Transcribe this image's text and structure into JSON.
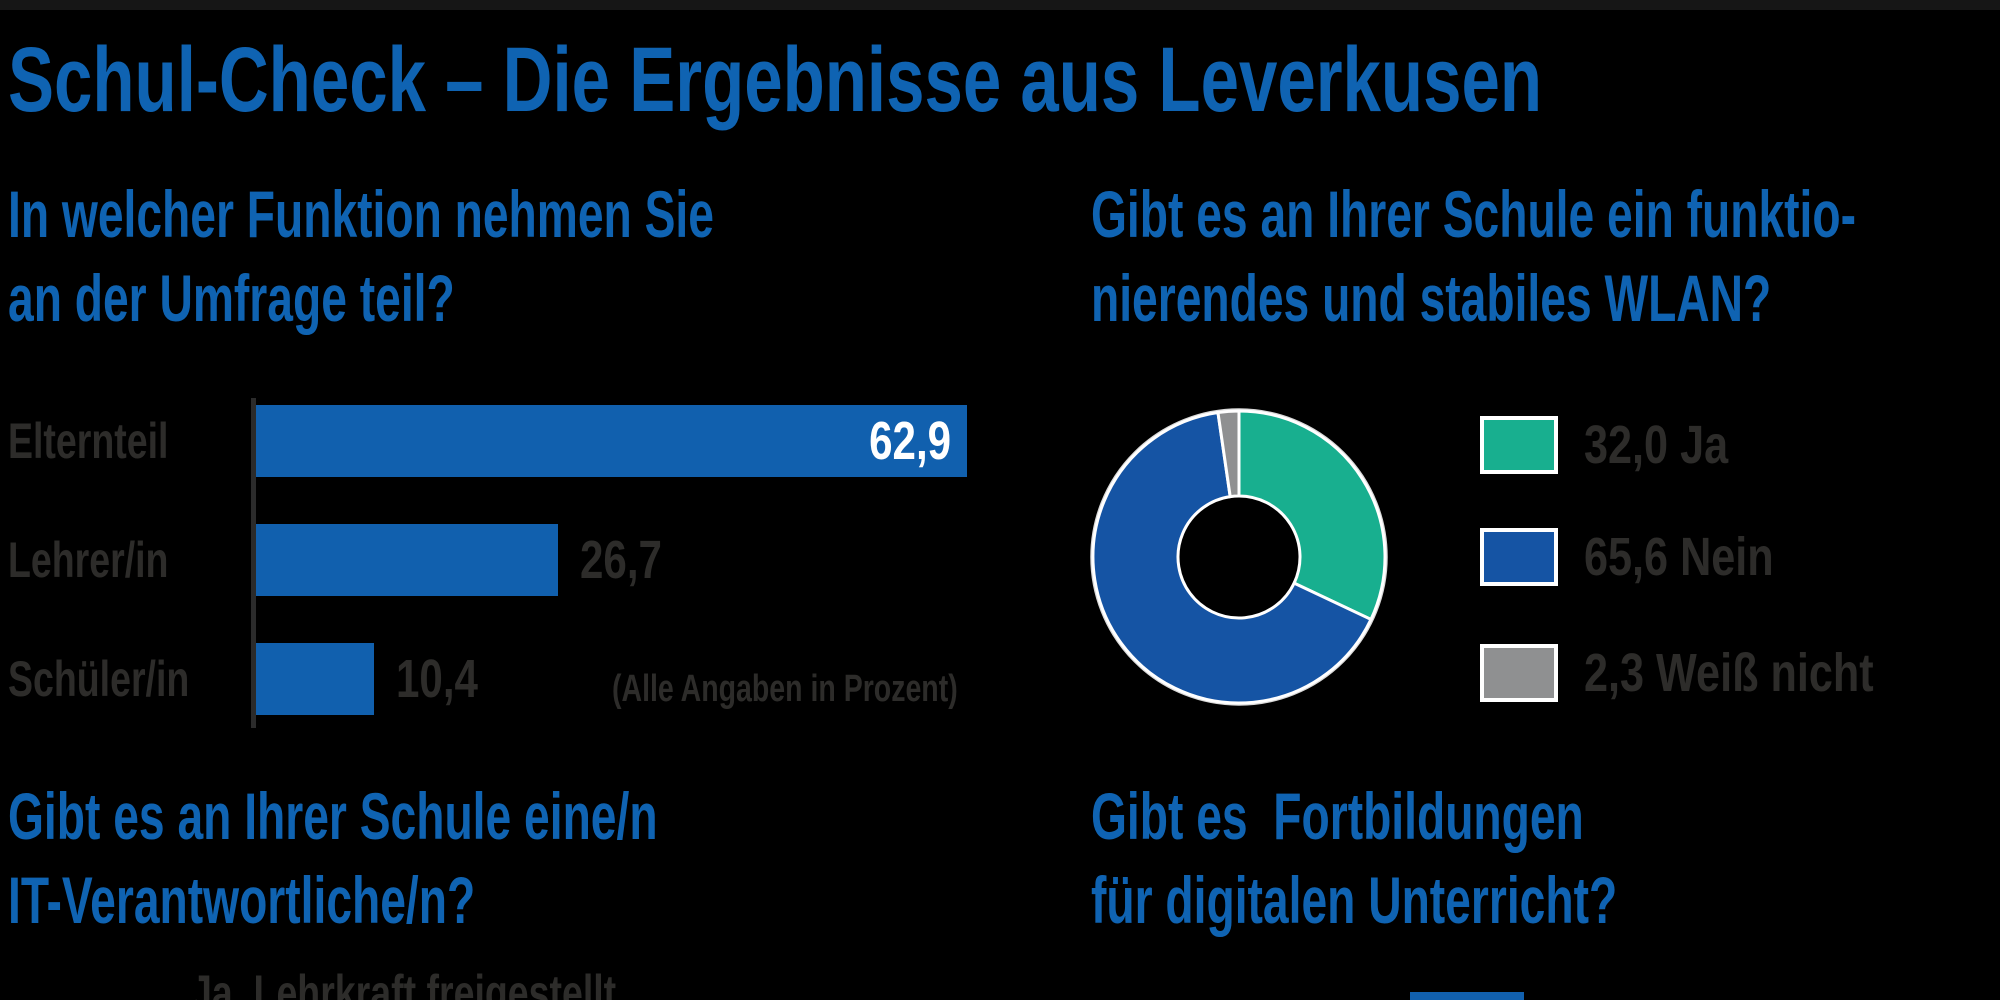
{
  "page": {
    "title": "Schul-Check – Die Ergebnisse aus Leverkusen"
  },
  "colors": {
    "background": "#000000",
    "title_blue": "#0f63b2",
    "bar_blue": "#1160ae",
    "donut_blue": "#1554a4",
    "green": "#18af8f",
    "gray": "#8f9091",
    "dark_text": "#2d2c2a",
    "axis": "#2b2b2b",
    "white": "#ffffff"
  },
  "chart_data": [
    {
      "type": "bar",
      "question": [
        "In welcher Funktion nehmen Sie",
        "an der Umfrage teil?"
      ],
      "categories": [
        "Elternteil",
        "Lehrer/in",
        "Schüler/in"
      ],
      "values": [
        62.9,
        26.7,
        10.4
      ],
      "value_labels": [
        "62,9",
        "26,7",
        "10,4"
      ],
      "note": "(Alle Angaben in Prozent)",
      "bar_color": "#1160ae",
      "orientation": "horizontal",
      "unit": "percent",
      "xlim": [
        0,
        62.9
      ],
      "grid": false
    },
    {
      "type": "donut",
      "question": [
        "Gibt es an Ihrer Schule ein funktio-",
        "nierendes und stabiles WLAN?"
      ],
      "slices": [
        {
          "label": "Ja",
          "value": 32.0,
          "value_label": "32,0",
          "color": "#18af8f"
        },
        {
          "label": "Nein",
          "value": 65.6,
          "value_label": "65,6",
          "color": "#1554a4"
        },
        {
          "label": "Weiß nicht",
          "value": 2.3,
          "value_label": "2,3",
          "color": "#8f9091"
        }
      ],
      "start_angle": "12-oclock",
      "direction": "clockwise",
      "legend_position": "right",
      "unit": "percent"
    }
  ],
  "questions_bottom": [
    {
      "lines": [
        "Gibt es an Ihrer Schule eine/n",
        "IT-Verantwortliche/n?"
      ],
      "partial_answer_label": "Ja, Lehrkraft freigestellt"
    },
    {
      "lines": [
        "Gibt es  Fortbildungen",
        "für digitalen Unterricht?"
      ]
    }
  ]
}
